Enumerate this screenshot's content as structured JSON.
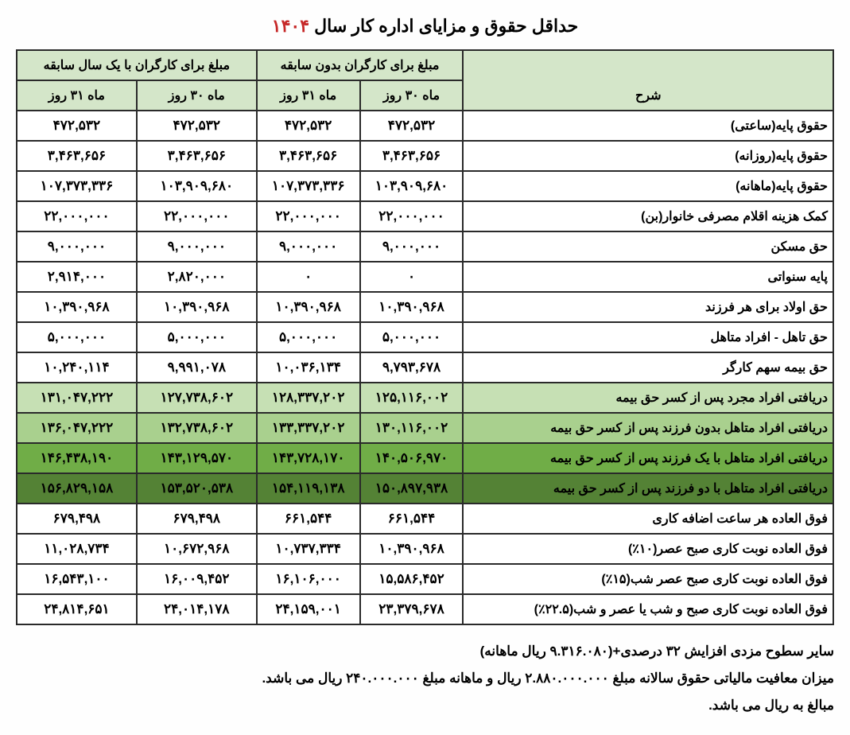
{
  "title_part1": "حداقل حقوق و مزایای اداره کار سال ",
  "title_year": "۱۴۰۴",
  "header": {
    "desc": "شرح",
    "no_exp": "مبلغ برای کارگران بدون سابقه",
    "one_year": "مبلغ برای کارگران با یک سال سابقه",
    "m30": "ماه ۳۰ روز",
    "m31": "ماه ۳۱ روز"
  },
  "rows": [
    {
      "desc": "حقوق پایه(ساعتی)",
      "a30": "۴۷۲,۵۳۲",
      "a31": "۴۷۲,۵۳۲",
      "b30": "۴۷۲,۵۳۲",
      "b31": "۴۷۲,۵۳۲",
      "bg": "#ffffff"
    },
    {
      "desc": "حقوق پایه(روزانه)",
      "a30": "۳,۴۶۳,۶۵۶",
      "a31": "۳,۴۶۳,۶۵۶",
      "b30": "۳,۴۶۳,۶۵۶",
      "b31": "۳,۴۶۳,۶۵۶",
      "bg": "#ffffff"
    },
    {
      "desc": "حقوق پایه(ماهانه)",
      "a30": "۱۰۳,۹۰۹,۶۸۰",
      "a31": "۱۰۷,۳۷۳,۳۳۶",
      "b30": "۱۰۳,۹۰۹,۶۸۰",
      "b31": "۱۰۷,۳۷۳,۳۳۶",
      "bg": "#ffffff"
    },
    {
      "desc": "کمک هزینه اقلام مصرفی خانوار(بن)",
      "a30": "۲۲,۰۰۰,۰۰۰",
      "a31": "۲۲,۰۰۰,۰۰۰",
      "b30": "۲۲,۰۰۰,۰۰۰",
      "b31": "۲۲,۰۰۰,۰۰۰",
      "bg": "#ffffff"
    },
    {
      "desc": "حق مسکن",
      "a30": "۹,۰۰۰,۰۰۰",
      "a31": "۹,۰۰۰,۰۰۰",
      "b30": "۹,۰۰۰,۰۰۰",
      "b31": "۹,۰۰۰,۰۰۰",
      "bg": "#ffffff"
    },
    {
      "desc": "پایه سنواتی",
      "a30": "۰",
      "a31": "۰",
      "b30": "۲,۸۲۰,۰۰۰",
      "b31": "۲,۹۱۴,۰۰۰",
      "bg": "#ffffff"
    },
    {
      "desc": "حق اولاد برای هر فرزند",
      "a30": "۱۰,۳۹۰,۹۶۸",
      "a31": "۱۰,۳۹۰,۹۶۸",
      "b30": "۱۰,۳۹۰,۹۶۸",
      "b31": "۱۰,۳۹۰,۹۶۸",
      "bg": "#ffffff"
    },
    {
      "desc": "حق  تاهل - افراد متاهل",
      "a30": "۵,۰۰۰,۰۰۰",
      "a31": "۵,۰۰۰,۰۰۰",
      "b30": "۵,۰۰۰,۰۰۰",
      "b31": "۵,۰۰۰,۰۰۰",
      "bg": "#ffffff"
    },
    {
      "desc": "حق بیمه سهم کارگر",
      "a30": "۹,۷۹۳,۶۷۸",
      "a31": "۱۰,۰۳۶,۱۳۴",
      "b30": "۹,۹۹۱,۰۷۸",
      "b31": "۱۰,۲۴۰,۱۱۴",
      "bg": "#ffffff"
    },
    {
      "desc": "دریافتی افراد مجرد پس از کسر حق بیمه",
      "a30": "۱۲۵,۱۱۶,۰۰۲",
      "a31": "۱۲۸,۳۳۷,۲۰۲",
      "b30": "۱۲۷,۷۳۸,۶۰۲",
      "b31": "۱۳۱,۰۴۷,۲۲۲",
      "bg": "#c6e0b4"
    },
    {
      "desc": "دریافتی افراد متاهل بدون فرزند پس از کسر حق بیمه",
      "a30": "۱۳۰,۱۱۶,۰۰۲",
      "a31": "۱۳۳,۳۳۷,۲۰۲",
      "b30": "۱۳۲,۷۳۸,۶۰۲",
      "b31": "۱۳۶,۰۴۷,۲۲۲",
      "bg": "#a9d08e"
    },
    {
      "desc": "دریافتی افراد متاهل با یک فرزند پس از کسر حق بیمه",
      "a30": "۱۴۰,۵۰۶,۹۷۰",
      "a31": "۱۴۳,۷۲۸,۱۷۰",
      "b30": "۱۴۳,۱۲۹,۵۷۰",
      "b31": "۱۴۶,۴۳۸,۱۹۰",
      "bg": "#70ad47"
    },
    {
      "desc": "دریافتی افراد متاهل با دو فرزند پس از کسر حق بیمه",
      "a30": "۱۵۰,۸۹۷,۹۳۸",
      "a31": "۱۵۴,۱۱۹,۱۳۸",
      "b30": "۱۵۳,۵۲۰,۵۳۸",
      "b31": "۱۵۶,۸۲۹,۱۵۸",
      "bg": "#548235"
    },
    {
      "desc": "فوق العاده هر ساعت اضافه کاری",
      "a30": "۶۶۱,۵۴۴",
      "a31": "۶۶۱,۵۴۴",
      "b30": "۶۷۹,۴۹۸",
      "b31": "۶۷۹,۴۹۸",
      "bg": "#ffffff"
    },
    {
      "desc": "فوق العاده نوبت کاری صبح عصر(۱۰٪)",
      "a30": "۱۰,۳۹۰,۹۶۸",
      "a31": "۱۰,۷۳۷,۳۳۴",
      "b30": "۱۰,۶۷۲,۹۶۸",
      "b31": "۱۱,۰۲۸,۷۳۴",
      "bg": "#ffffff"
    },
    {
      "desc": "فوق العاده نوبت کاری صبح عصر شب(۱۵٪)",
      "a30": "۱۵,۵۸۶,۴۵۲",
      "a31": "۱۶,۱۰۶,۰۰۰",
      "b30": "۱۶,۰۰۹,۴۵۲",
      "b31": "۱۶,۵۴۳,۱۰۰",
      "bg": "#ffffff"
    },
    {
      "desc": "فوق العاده نوبت کاری صبح و شب یا عصر و شب(۲۲.۵٪)",
      "a30": "۲۳,۳۷۹,۶۷۸",
      "a31": "۲۴,۱۵۹,۰۰۱",
      "b30": "۲۴,۰۱۴,۱۷۸",
      "b31": "۲۴,۸۱۴,۶۵۱",
      "bg": "#ffffff"
    }
  ],
  "footer": {
    "line1": "سایر سطوح مزدی افزایش ۳۲ درصدی+(۹.۳۱۶.۰۸۰ ریال ماهانه)",
    "line2": "میزان معافیت مالیاتی حقوق سالانه مبلغ ۲.۸۸۰.۰۰۰.۰۰۰ ریال و ماهانه مبلغ ۲۴۰.۰۰۰.۰۰۰ ریال می باشد.",
    "line3": "مبالغ به ریال می باشد."
  },
  "styling": {
    "border_color": "#2a2a2a",
    "header_bg": "#d4e6c9",
    "title_year_color": "#c62828",
    "font_family": "Tahoma"
  }
}
